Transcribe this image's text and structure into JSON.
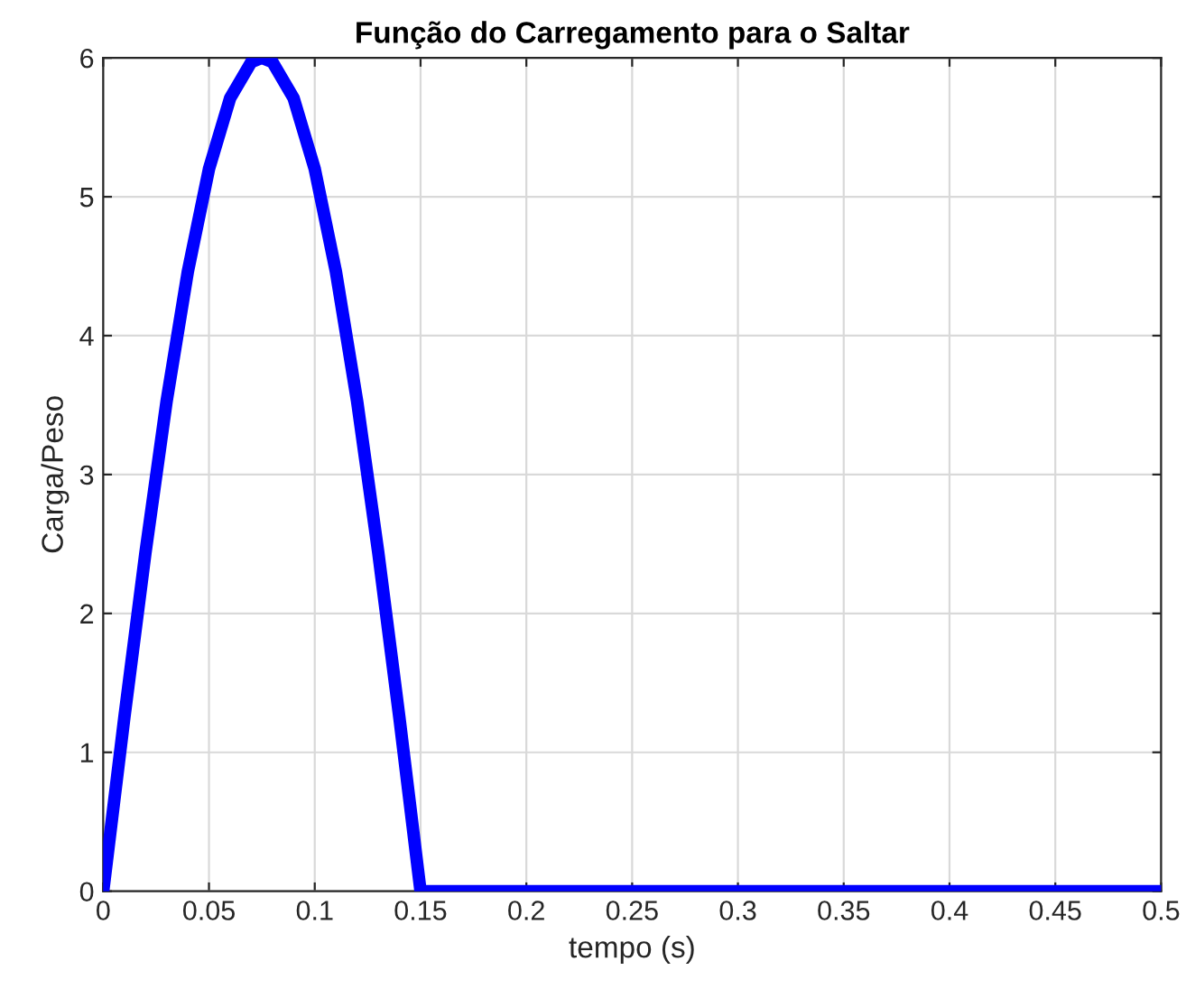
{
  "chart_data": {
    "type": "line",
    "title": "Função do Carregamento para o Saltar",
    "xlabel": "tempo (s)",
    "ylabel": "Carga/Peso",
    "series": [
      {
        "color": "#0000ff",
        "x": [
          0,
          0.01,
          0.02,
          0.03,
          0.04,
          0.05,
          0.06,
          0.07,
          0.075,
          0.08,
          0.09,
          0.1,
          0.11,
          0.12,
          0.13,
          0.14,
          0.15,
          0.5
        ],
        "values": [
          0,
          1.25,
          2.44,
          3.53,
          4.46,
          5.2,
          5.71,
          5.97,
          6,
          5.97,
          5.71,
          5.2,
          4.46,
          3.53,
          2.44,
          1.25,
          0,
          0
        ]
      }
    ],
    "xlim": [
      0,
      0.5
    ],
    "ylim": [
      0,
      6
    ],
    "xticks": [
      0,
      0.05,
      0.1,
      0.15,
      0.2,
      0.25,
      0.3,
      0.35,
      0.4,
      0.45,
      0.5
    ],
    "yticks": [
      0,
      1,
      2,
      3,
      4,
      5,
      6
    ],
    "grid": true,
    "legend": false,
    "marker": "none",
    "line_style": "solid"
  }
}
